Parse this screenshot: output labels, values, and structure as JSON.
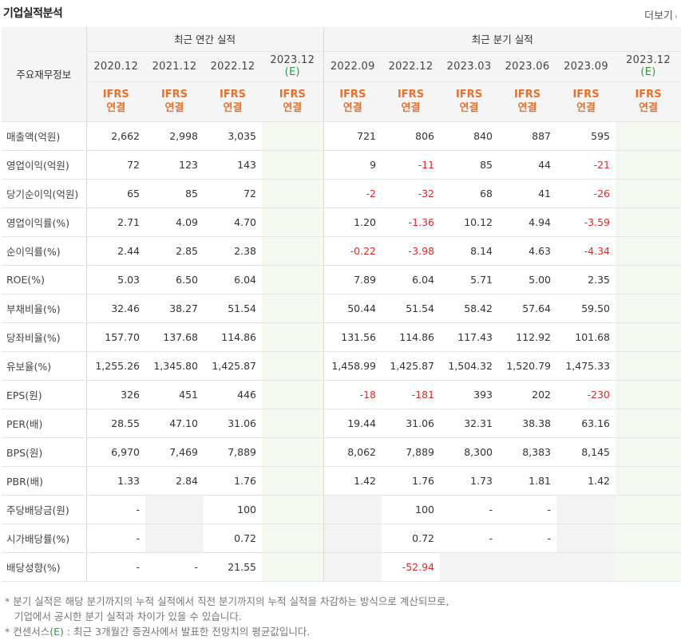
{
  "header": {
    "title": "기업실적분석",
    "more_label": "더보기",
    "more_arrow": "›"
  },
  "table": {
    "corner_label": "주요재무정보",
    "groups": {
      "annual": "최근 연간 실적",
      "quarter": "최근 분기 실적"
    },
    "annual_periods": [
      {
        "label": "2020.12",
        "ifrs": "IFRS",
        "basis": "연결"
      },
      {
        "label": "2021.12",
        "ifrs": "IFRS",
        "basis": "연결"
      },
      {
        "label": "2022.12",
        "ifrs": "IFRS",
        "basis": "연결"
      },
      {
        "label": "2023.12",
        "est": "(E)",
        "ifrs": "IFRS",
        "basis": "연결"
      }
    ],
    "quarter_periods": [
      {
        "label": "2022.09",
        "ifrs": "IFRS",
        "basis": "연결"
      },
      {
        "label": "2022.12",
        "ifrs": "IFRS",
        "basis": "연결"
      },
      {
        "label": "2023.03",
        "ifrs": "IFRS",
        "basis": "연결"
      },
      {
        "label": "2023.06",
        "ifrs": "IFRS",
        "basis": "연결"
      },
      {
        "label": "2023.09",
        "ifrs": "IFRS",
        "basis": "연결"
      },
      {
        "label": "2023.12",
        "est": "(E)",
        "ifrs": "IFRS",
        "basis": "연결"
      }
    ],
    "rows": [
      {
        "label": "매출액(억원)",
        "annual": [
          "2,662",
          "2,998",
          "3,035",
          ""
        ],
        "quarter": [
          "721",
          "806",
          "840",
          "887",
          "595",
          ""
        ]
      },
      {
        "label": "영업이익(억원)",
        "annual": [
          "72",
          "123",
          "143",
          ""
        ],
        "quarter": [
          "9",
          "-11",
          "85",
          "44",
          "-21",
          ""
        ]
      },
      {
        "label": "당기순이익(억원)",
        "annual": [
          "65",
          "85",
          "72",
          ""
        ],
        "quarter": [
          "-2",
          "-32",
          "68",
          "41",
          "-26",
          ""
        ]
      },
      {
        "label": "영업이익률(%)",
        "annual": [
          "2.71",
          "4.09",
          "4.70",
          ""
        ],
        "quarter": [
          "1.20",
          "-1.36",
          "10.12",
          "4.94",
          "-3.59",
          ""
        ]
      },
      {
        "label": "순이익률(%)",
        "annual": [
          "2.44",
          "2.85",
          "2.38",
          ""
        ],
        "quarter": [
          "-0.22",
          "-3.98",
          "8.14",
          "4.63",
          "-4.34",
          ""
        ]
      },
      {
        "label": "ROE(%)",
        "annual": [
          "5.03",
          "6.50",
          "6.04",
          ""
        ],
        "quarter": [
          "7.89",
          "6.04",
          "5.71",
          "5.00",
          "2.35",
          ""
        ]
      },
      {
        "label": "부채비율(%)",
        "annual": [
          "32.46",
          "38.27",
          "51.54",
          ""
        ],
        "quarter": [
          "50.44",
          "51.54",
          "58.42",
          "57.64",
          "59.50",
          ""
        ]
      },
      {
        "label": "당좌비율(%)",
        "annual": [
          "157.70",
          "137.68",
          "114.86",
          ""
        ],
        "quarter": [
          "131.56",
          "114.86",
          "117.43",
          "112.92",
          "101.68",
          ""
        ]
      },
      {
        "label": "유보율(%)",
        "annual": [
          "1,255.26",
          "1,345.80",
          "1,425.87",
          ""
        ],
        "quarter": [
          "1,458.99",
          "1,425.87",
          "1,504.32",
          "1,520.79",
          "1,475.33",
          ""
        ]
      },
      {
        "label": "EPS(원)",
        "annual": [
          "326",
          "451",
          "446",
          ""
        ],
        "quarter": [
          "-18",
          "-181",
          "393",
          "202",
          "-230",
          ""
        ]
      },
      {
        "label": "PER(배)",
        "annual": [
          "28.55",
          "47.10",
          "31.06",
          ""
        ],
        "quarter": [
          "19.44",
          "31.06",
          "32.31",
          "38.38",
          "63.16",
          ""
        ]
      },
      {
        "label": "BPS(원)",
        "annual": [
          "6,970",
          "7,469",
          "7,889",
          ""
        ],
        "quarter": [
          "8,062",
          "7,889",
          "8,300",
          "8,383",
          "8,145",
          ""
        ]
      },
      {
        "label": "PBR(배)",
        "annual": [
          "1.33",
          "2.84",
          "1.76",
          ""
        ],
        "quarter": [
          "1.42",
          "1.76",
          "1.73",
          "1.81",
          "1.42",
          ""
        ]
      },
      {
        "label": "주당배당금(원)",
        "annual": [
          "-",
          "",
          "100",
          ""
        ],
        "quarter": [
          "",
          "100",
          "-",
          "-",
          "",
          ""
        ]
      },
      {
        "label": "시가배당률(%)",
        "annual": [
          "-",
          "",
          "0.72",
          ""
        ],
        "quarter": [
          "",
          "0.72",
          "-",
          "-",
          "",
          ""
        ]
      },
      {
        "label": "배당성향(%)",
        "annual": [
          "-",
          "-",
          "21.55",
          ""
        ],
        "quarter": [
          "",
          "-52.94",
          "",
          "",
          "",
          ""
        ]
      }
    ],
    "group_break_rows": [
      3,
      6,
      9,
      13
    ],
    "shaded_cells": {
      "13": {
        "annual": [
          1
        ],
        "quarter": [
          0,
          4
        ]
      },
      "14": {
        "annual": [
          1
        ],
        "quarter": [
          0,
          4
        ]
      },
      "15": {
        "annual": [],
        "quarter": [
          0,
          2,
          3,
          4
        ]
      }
    }
  },
  "notes": {
    "line1": "* 분기 실적은 해당 분기까지의 누적 실적에서 직전 분기까지의 누적 실적을 차감하는 방식으로 계산되므로,",
    "line2": "기업에서 공시한 분기 실적과 차이가 있을 수 있습니다.",
    "line3_pre": "* 컨센서스",
    "line3_e": "(E)",
    "line3_post": " : 최근 3개월간 증권사에서 발표한 전망치의 평균값입니다."
  }
}
